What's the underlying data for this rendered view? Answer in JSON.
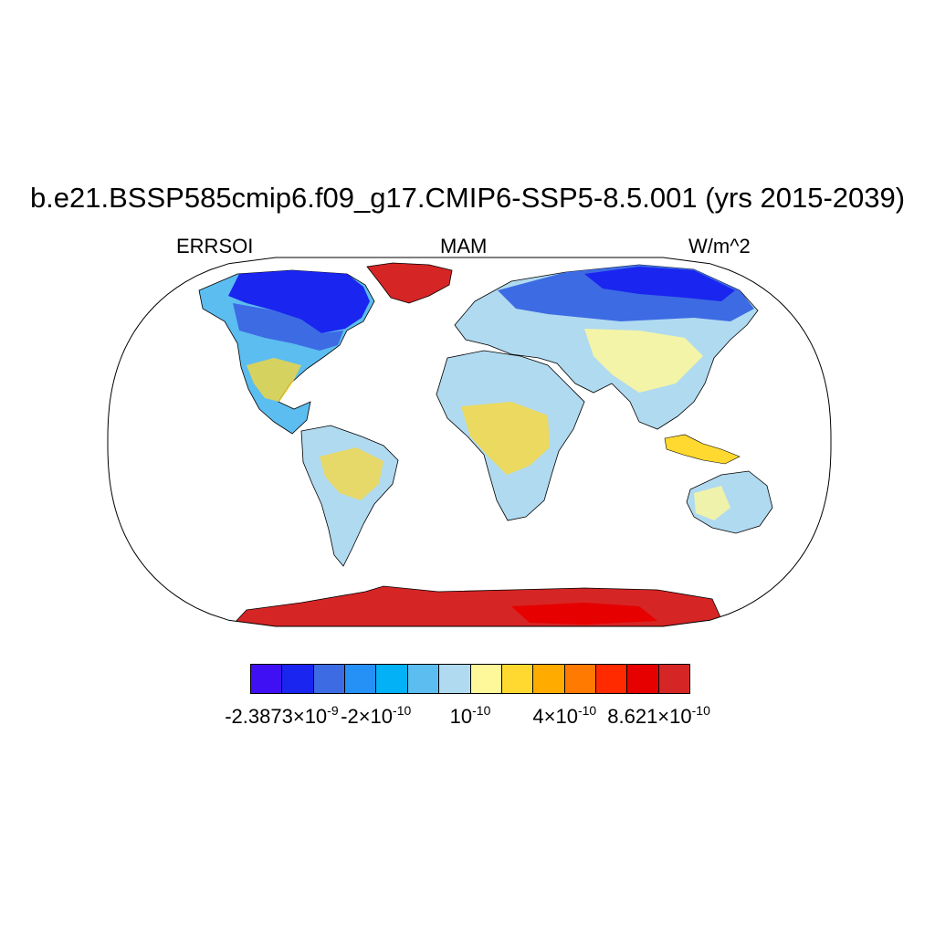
{
  "title": "b.e21.BSSP585cmip6.f09_g17.CMIP6-SSP5-8.5.001 (yrs 2015-2039)",
  "subtitle_left": "ERRSOI",
  "subtitle_center": "MAM",
  "subtitle_right": "W/m^2",
  "colorbar": {
    "colors": [
      "#4010f5",
      "#1a25f0",
      "#3d6be3",
      "#2590f5",
      "#03b1f6",
      "#5cbdf0",
      "#b0daf0",
      "#fff89a",
      "#ffd92f",
      "#ffab00",
      "#ff7a00",
      "#ff2a00",
      "#e60000",
      "#d62525"
    ],
    "labels": [
      {
        "mant": "-2.3873",
        "times": "×",
        "base": "10",
        "exp": "-9"
      },
      {
        "mant": "-2",
        "times": "×",
        "base": "10",
        "exp": "-10"
      },
      {
        "mant": "",
        "times": "",
        "base": "10",
        "exp": "-10"
      },
      {
        "mant": "4",
        "times": "×",
        "base": "10",
        "exp": "-10"
      },
      {
        "mant": "8.621",
        "times": "×",
        "base": "10",
        "exp": "-10"
      }
    ]
  },
  "map": {
    "projection": "robinson",
    "ocean_color": "#ffffff",
    "outline_color": "#000000"
  }
}
